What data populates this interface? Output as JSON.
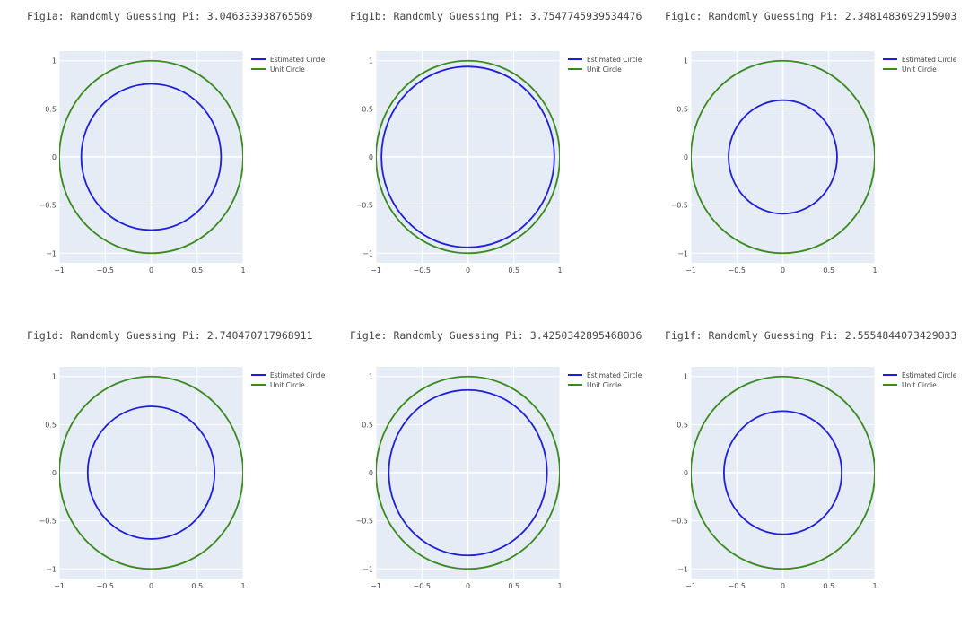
{
  "chart_data": [
    {
      "id": "fig1a",
      "type": "line",
      "title": "Fig1a: Randomly Guessing Pi: 3.046333938765569",
      "estimated_radius": 0.76,
      "unit_radius": 1,
      "xlim": [
        -1,
        1
      ],
      "ylim": [
        -1.1,
        1.1
      ],
      "xticks": [
        -1,
        -0.5,
        0,
        0.5,
        1
      ],
      "xtick_labels": [
        "−1",
        "−0.5",
        "0",
        "0.5",
        "1"
      ],
      "yticks": [
        1,
        0.5,
        0,
        -0.5,
        -1
      ],
      "ytick_labels": [
        "1",
        "0.5",
        "0",
        "−0.5",
        "−1"
      ],
      "series": [
        {
          "name": "Estimated Circle",
          "color": "#1f1fd8",
          "shape": "circle",
          "radius": 0.76
        },
        {
          "name": "Unit Circle",
          "color": "#3a8a1e",
          "shape": "circle",
          "radius": 1
        }
      ]
    },
    {
      "id": "fig1b",
      "type": "line",
      "title": "Fig1b: Randomly Guessing Pi: 3.7547745939534476",
      "estimated_radius": 0.94,
      "unit_radius": 1,
      "xlim": [
        -1,
        1
      ],
      "ylim": [
        -1.1,
        1.1
      ],
      "xticks": [
        -1,
        -0.5,
        0,
        0.5,
        1
      ],
      "xtick_labels": [
        "−1",
        "−0.5",
        "0",
        "0.5",
        "1"
      ],
      "yticks": [
        1,
        0.5,
        0,
        -0.5,
        -1
      ],
      "ytick_labels": [
        "1",
        "0.5",
        "0",
        "−0.5",
        "−1"
      ],
      "series": [
        {
          "name": "Estimated Circle",
          "color": "#1f1fd8",
          "shape": "circle",
          "radius": 0.94
        },
        {
          "name": "Unit Circle",
          "color": "#3a8a1e",
          "shape": "circle",
          "radius": 1
        }
      ]
    },
    {
      "id": "fig1c",
      "type": "line",
      "title": "Fig1c: Randomly Guessing Pi: 2.3481483692915903",
      "estimated_radius": 0.59,
      "unit_radius": 1,
      "xlim": [
        -1,
        1
      ],
      "ylim": [
        -1.1,
        1.1
      ],
      "xticks": [
        -1,
        -0.5,
        0,
        0.5,
        1
      ],
      "xtick_labels": [
        "−1",
        "−0.5",
        "0",
        "0.5",
        "1"
      ],
      "yticks": [
        1,
        0.5,
        0,
        -0.5,
        -1
      ],
      "ytick_labels": [
        "1",
        "0.5",
        "0",
        "−0.5",
        "−1"
      ],
      "series": [
        {
          "name": "Estimated Circle",
          "color": "#1f1fd8",
          "shape": "circle",
          "radius": 0.59
        },
        {
          "name": "Unit Circle",
          "color": "#3a8a1e",
          "shape": "circle",
          "radius": 1
        }
      ]
    },
    {
      "id": "fig1d",
      "type": "line",
      "title": "Fig1d: Randomly Guessing Pi: 2.740470717968911",
      "estimated_radius": 0.69,
      "unit_radius": 1,
      "xlim": [
        -1,
        1
      ],
      "ylim": [
        -1.1,
        1.1
      ],
      "xticks": [
        -1,
        -0.5,
        0,
        0.5,
        1
      ],
      "xtick_labels": [
        "−1",
        "−0.5",
        "0",
        "0.5",
        "1"
      ],
      "yticks": [
        1,
        0.5,
        0,
        -0.5,
        -1
      ],
      "ytick_labels": [
        "1",
        "0.5",
        "0",
        "−0.5",
        "−1"
      ],
      "series": [
        {
          "name": "Estimated Circle",
          "color": "#1f1fd8",
          "shape": "circle",
          "radius": 0.69
        },
        {
          "name": "Unit Circle",
          "color": "#3a8a1e",
          "shape": "circle",
          "radius": 1
        }
      ]
    },
    {
      "id": "fig1e",
      "type": "line",
      "title": "Fig1e: Randomly Guessing Pi: 3.4250342895468036",
      "estimated_radius": 0.86,
      "unit_radius": 1,
      "xlim": [
        -1,
        1
      ],
      "ylim": [
        -1.1,
        1.1
      ],
      "xticks": [
        -1,
        -0.5,
        0,
        0.5,
        1
      ],
      "xtick_labels": [
        "−1",
        "−0.5",
        "0",
        "0.5",
        "1"
      ],
      "yticks": [
        1,
        0.5,
        0,
        -0.5,
        -1
      ],
      "ytick_labels": [
        "1",
        "0.5",
        "0",
        "−0.5",
        "−1"
      ],
      "series": [
        {
          "name": "Estimated Circle",
          "color": "#1f1fd8",
          "shape": "circle",
          "radius": 0.86
        },
        {
          "name": "Unit Circle",
          "color": "#3a8a1e",
          "shape": "circle",
          "radius": 1
        }
      ]
    },
    {
      "id": "fig1f",
      "type": "line",
      "title": "Fig1f: Randomly Guessing Pi: 2.5554844073429033",
      "estimated_radius": 0.64,
      "unit_radius": 1,
      "xlim": [
        -1,
        1
      ],
      "ylim": [
        -1.1,
        1.1
      ],
      "xticks": [
        -1,
        -0.5,
        0,
        0.5,
        1
      ],
      "xtick_labels": [
        "−1",
        "−0.5",
        "0",
        "0.5",
        "1"
      ],
      "yticks": [
        1,
        0.5,
        0,
        -0.5,
        -1
      ],
      "ytick_labels": [
        "1",
        "0.5",
        "0",
        "−0.5",
        "−1"
      ],
      "series": [
        {
          "name": "Estimated Circle",
          "color": "#1f1fd8",
          "shape": "circle",
          "radius": 0.64
        },
        {
          "name": "Unit Circle",
          "color": "#3a8a1e",
          "shape": "circle",
          "radius": 1
        }
      ]
    }
  ],
  "style": {
    "plot_bg": "#e5ecf6",
    "grid": "#ffffff",
    "title_color": "#444444",
    "tick_color": "#444444"
  }
}
